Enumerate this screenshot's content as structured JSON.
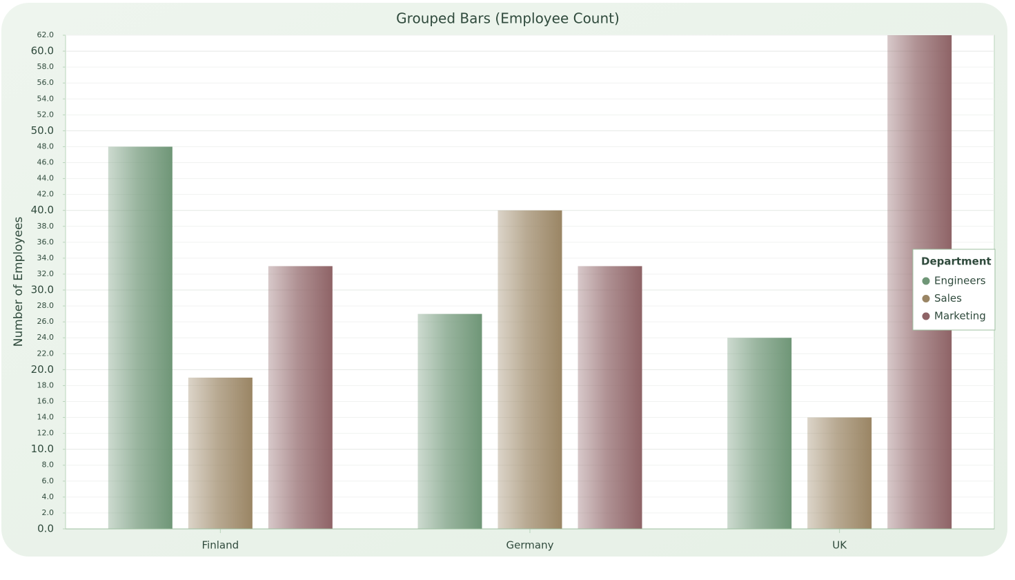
{
  "chart_data": {
    "type": "bar",
    "title": "Grouped Bars (Employee Count)",
    "y_label": "Number of Employees",
    "categories": [
      "Finland",
      "Germany",
      "UK"
    ],
    "series": [
      {
        "name": "Engineers",
        "color": "#6f9677",
        "values": [
          48,
          27,
          24
        ]
      },
      {
        "name": "Sales",
        "color": "#9a8564",
        "values": [
          19,
          40,
          14
        ]
      },
      {
        "name": "Marketing",
        "color": "#8e6366",
        "values": [
          33,
          33,
          62
        ]
      }
    ],
    "legend_title": "Department",
    "legend_position": "right",
    "ylim": [
      0,
      62
    ],
    "yticks": [
      {
        "value": 0,
        "label": "0.0"
      },
      {
        "value": 2,
        "label": "2.0"
      },
      {
        "value": 4,
        "label": "4.0"
      },
      {
        "value": 6,
        "label": "6.0"
      },
      {
        "value": 8,
        "label": "8.0"
      },
      {
        "value": 10,
        "label": "10.0"
      },
      {
        "value": 12,
        "label": "12.0"
      },
      {
        "value": 14,
        "label": "14.0"
      },
      {
        "value": 16,
        "label": "16.0"
      },
      {
        "value": 18,
        "label": "18.0"
      },
      {
        "value": 20,
        "label": "20.0"
      },
      {
        "value": 22,
        "label": "22.0"
      },
      {
        "value": 24,
        "label": "24.0"
      },
      {
        "value": 26,
        "label": "26.0"
      },
      {
        "value": 28,
        "label": "28.0"
      },
      {
        "value": 30,
        "label": "30.0"
      },
      {
        "value": 32,
        "label": "32.0"
      },
      {
        "value": 34,
        "label": "34.0"
      },
      {
        "value": 36,
        "label": "36.0"
      },
      {
        "value": 38,
        "label": "38.0"
      },
      {
        "value": 40,
        "label": "40.0"
      },
      {
        "value": 42,
        "label": "42.0"
      },
      {
        "value": 44,
        "label": "44.0"
      },
      {
        "value": 46,
        "label": "46.0"
      },
      {
        "value": 48,
        "label": "48.0"
      },
      {
        "value": 50,
        "label": "50.0"
      },
      {
        "value": 52,
        "label": "52.0"
      },
      {
        "value": 54,
        "label": "54.0"
      },
      {
        "value": 56,
        "label": "56.0"
      },
      {
        "value": 58,
        "label": "58.0"
      },
      {
        "value": 60,
        "label": "60.0"
      },
      {
        "value": 62,
        "label": "62.0"
      }
    ],
    "grid": true
  }
}
